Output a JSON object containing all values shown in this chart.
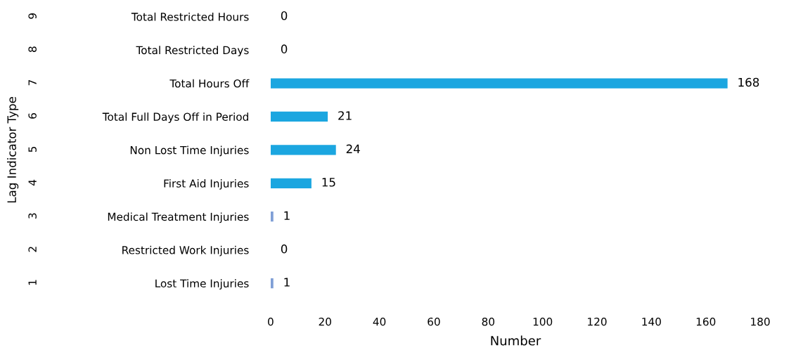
{
  "chart_data": {
    "type": "bar",
    "orientation": "horizontal",
    "xlabel": "Number",
    "annotations": [
      "Lag Indicator Type"
    ],
    "categories": [
      "Total Restricted Hours",
      "Total Restricted Days",
      "Total Hours Off",
      "Total Full Days Off in Period",
      "Non Lost Time Injuries",
      "First Aid Injuries",
      "Medical Treatment Injuries",
      "Restricted Work Injuries",
      "Lost Time Injuries"
    ],
    "values": [
      0,
      0,
      168,
      21,
      24,
      15,
      1,
      0,
      1
    ],
    "colors": [
      "#1ba6e0",
      "#1ba6e0",
      "#1ba6e0",
      "#1ba6e0",
      "#1ba6e0",
      "#1ba6e0",
      "#7f9fd6",
      "#7f9fd6",
      "#7f9fd6"
    ],
    "xlim": [
      0,
      180
    ],
    "xticks": [
      0,
      20,
      40,
      60,
      80,
      100,
      120,
      140,
      160,
      180
    ],
    "data_labels": true,
    "grid": false,
    "legend": false,
    "y2_categories": [
      "9",
      "8",
      "7",
      "6",
      "5",
      "4",
      "3",
      "2",
      "1"
    ]
  }
}
